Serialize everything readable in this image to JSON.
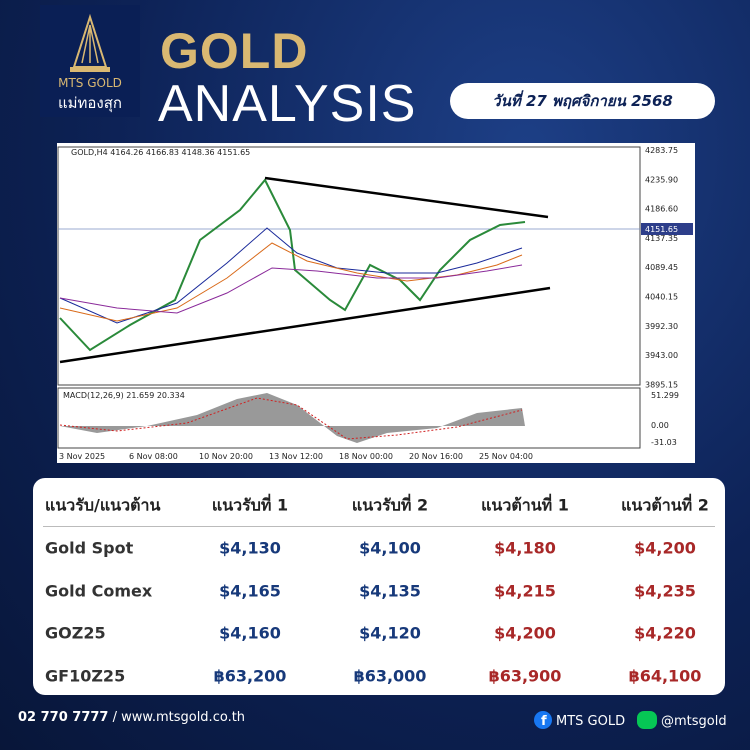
{
  "logo": {
    "brand": "MTS GOLD",
    "thai": "แม่ทองสุก"
  },
  "header": {
    "title_1": "GOLD",
    "title_2": "ANALYSIS",
    "date": "วันที่ 27 พฤศจิกายน 2568"
  },
  "chart": {
    "symbol_info": "GOLD,H4 4164.26 4166.83 4148.36 4151.65",
    "price_ticks": [
      "4283.75",
      "4235.90",
      "4186.60",
      "4137.35",
      "4089.45",
      "4040.15",
      "3992.30",
      "3943.00",
      "3895.15"
    ],
    "current_price": "4151.65",
    "macd_label": "MACD(12,26,9) 21.659 20.334",
    "macd_ticks": [
      "51.299",
      "0.00",
      "-31.03"
    ],
    "date_ticks": [
      "3 Nov 2025",
      "6 Nov 08:00",
      "10 Nov 20:00",
      "13 Nov 12:00",
      "18 Nov 00:00",
      "20 Nov 16:00",
      "25 Nov 04:00"
    ]
  },
  "table": {
    "header": [
      "แนวรับ/แนวต้าน",
      "แนวรับที่ 1",
      "แนวรับที่ 2",
      "แนวต้านที่ 1",
      "แนวต้านที่ 2"
    ],
    "rows": [
      [
        "Gold Spot",
        "$4,130",
        "$4,100",
        "$4,180",
        "$4,200"
      ],
      [
        "Gold Comex",
        "$4,165",
        "$4,135",
        "$4,215",
        "$4,235"
      ],
      [
        "GOZ25",
        "$4,160",
        "$4,120",
        "$4,200",
        "$4,220"
      ],
      [
        "GF10Z25",
        "฿63,200",
        "฿63,000",
        "฿63,900",
        "฿64,100"
      ]
    ]
  },
  "footer": {
    "phone": "02 770 7777",
    "website": "/ www.mtsgold.co.th",
    "facebook": "MTS GOLD",
    "line": "@mtsgold"
  }
}
